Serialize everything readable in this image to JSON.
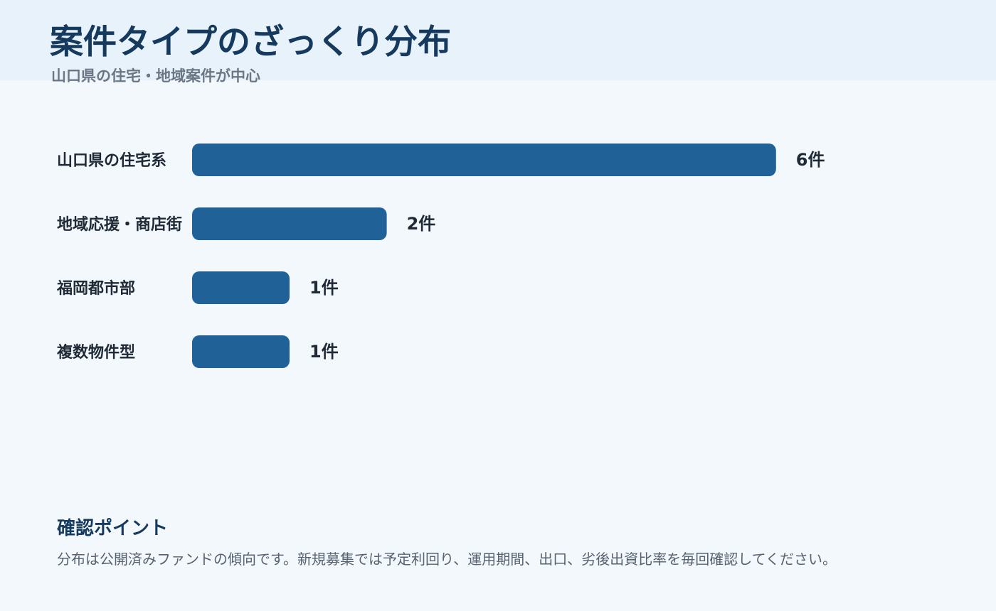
{
  "header": {
    "title": "案件タイプのざっくり分布",
    "subtitle": "山口県の住宅・地域案件が中心"
  },
  "chart_data": {
    "type": "bar",
    "orientation": "horizontal",
    "categories": [
      "山口県の住宅系",
      "地域応援・商店街",
      "福岡都市部",
      "複数物件型"
    ],
    "values": [
      6,
      2,
      1,
      1
    ],
    "value_labels": [
      "6件",
      "2件",
      "1件",
      "1件"
    ],
    "unit": "件",
    "bar_color": "#206297",
    "title": "",
    "xlabel": "",
    "ylabel": "",
    "grid": false,
    "legend": "none"
  },
  "notes": {
    "title": "確認ポイント",
    "body": "分布は公開済みファンドの傾向です。新規募集では予定利回り、運用期間、出口、劣後出資比率を毎回確認してください。"
  }
}
